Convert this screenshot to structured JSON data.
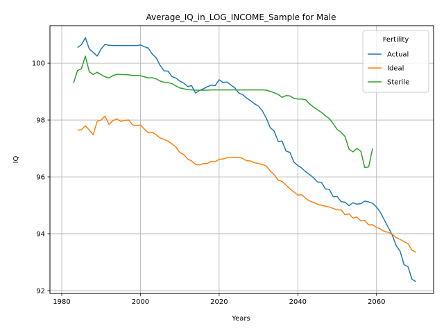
{
  "chart_data": {
    "type": "line",
    "title": "Average_IQ_in_LOG_INCOME_Sample for Male",
    "xlabel": "Years",
    "ylabel": "IQ",
    "xlim": [
      1977,
      2074.5
    ],
    "ylim": [
      91.9,
      101.32
    ],
    "xticks": [
      1980,
      2000,
      2020,
      2040,
      2060
    ],
    "yticks": [
      92,
      94,
      96,
      98,
      100
    ],
    "grid": true,
    "legend": {
      "title": "Fertility",
      "placement": "top-right"
    },
    "series": [
      {
        "name": "Actual",
        "color": "#1f77b4",
        "x": [
          1984,
          1985,
          1986,
          1987,
          1988,
          1989,
          1990,
          1991,
          1992,
          1993,
          1994,
          1995,
          1996,
          1997,
          1998,
          1999,
          2000,
          2001,
          2002,
          2003,
          2004,
          2005,
          2006,
          2007,
          2008,
          2009,
          2010,
          2011,
          2012,
          2013,
          2014,
          2015,
          2016,
          2017,
          2018,
          2019,
          2020,
          2021,
          2022,
          2023,
          2024,
          2025,
          2026,
          2027,
          2028,
          2029,
          2030,
          2031,
          2032,
          2033,
          2034,
          2035,
          2036,
          2037,
          2038,
          2039,
          2040,
          2041,
          2042,
          2043,
          2044,
          2045,
          2046,
          2047,
          2048,
          2049,
          2050,
          2051,
          2052,
          2053,
          2054,
          2055,
          2056,
          2057,
          2058,
          2059,
          2060,
          2061,
          2062,
          2063,
          2064,
          2065,
          2066,
          2067,
          2068,
          2069,
          2070
        ],
        "y": [
          100.55,
          100.65,
          100.9,
          100.5,
          100.38,
          100.25,
          100.5,
          100.66,
          100.63,
          100.62,
          100.62,
          100.62,
          100.62,
          100.62,
          100.62,
          100.62,
          100.64,
          100.58,
          100.53,
          100.32,
          100.19,
          99.92,
          99.73,
          99.72,
          99.53,
          99.48,
          99.37,
          99.3,
          99.18,
          99.21,
          98.95,
          99.04,
          99.1,
          99.17,
          99.23,
          99.21,
          99.42,
          99.32,
          99.34,
          99.23,
          99.13,
          98.95,
          98.89,
          98.77,
          98.68,
          98.57,
          98.49,
          98.32,
          98.06,
          97.73,
          97.61,
          97.25,
          97.26,
          96.91,
          96.86,
          96.52,
          96.4,
          96.31,
          96.18,
          96.08,
          95.97,
          95.82,
          95.81,
          95.58,
          95.56,
          95.3,
          95.31,
          95.13,
          95.11,
          94.99,
          95.09,
          95.04,
          95.06,
          95.15,
          95.12,
          95.07,
          94.94,
          94.75,
          94.48,
          94.22,
          93.95,
          93.58,
          93.38,
          92.91,
          92.84,
          92.4,
          92.32
        ]
      },
      {
        "name": "Ideal",
        "color": "#ff7f0e",
        "x": [
          1984,
          1985,
          1986,
          1987,
          1988,
          1989,
          1990,
          1991,
          1992,
          1993,
          1994,
          1995,
          1996,
          1997,
          1998,
          1999,
          2000,
          2001,
          2002,
          2003,
          2004,
          2005,
          2006,
          2007,
          2008,
          2009,
          2010,
          2011,
          2012,
          2013,
          2014,
          2015,
          2016,
          2017,
          2018,
          2019,
          2020,
          2021,
          2022,
          2023,
          2024,
          2025,
          2026,
          2027,
          2028,
          2029,
          2030,
          2031,
          2032,
          2033,
          2034,
          2035,
          2036,
          2037,
          2038,
          2039,
          2040,
          2041,
          2042,
          2043,
          2044,
          2045,
          2046,
          2047,
          2048,
          2049,
          2050,
          2051,
          2052,
          2053,
          2054,
          2055,
          2056,
          2057,
          2058,
          2059,
          2060,
          2061,
          2062,
          2063,
          2064,
          2065,
          2066,
          2067,
          2068,
          2069,
          2070
        ],
        "y": [
          97.64,
          97.66,
          97.8,
          97.65,
          97.48,
          97.96,
          98.0,
          98.14,
          97.84,
          97.98,
          98.04,
          97.95,
          97.99,
          98.0,
          97.83,
          97.8,
          97.83,
          97.68,
          97.55,
          97.57,
          97.48,
          97.37,
          97.32,
          97.26,
          97.16,
          97.06,
          96.85,
          96.79,
          96.63,
          96.56,
          96.44,
          96.42,
          96.47,
          96.47,
          96.55,
          96.53,
          96.62,
          96.63,
          96.67,
          96.69,
          96.69,
          96.69,
          96.65,
          96.57,
          96.56,
          96.5,
          96.47,
          96.44,
          96.38,
          96.21,
          96.07,
          95.89,
          95.84,
          95.71,
          95.58,
          95.47,
          95.36,
          95.37,
          95.25,
          95.15,
          95.1,
          95.04,
          95.0,
          94.97,
          94.94,
          94.89,
          94.84,
          94.84,
          94.67,
          94.7,
          94.55,
          94.59,
          94.45,
          94.47,
          94.31,
          94.32,
          94.22,
          94.17,
          94.08,
          94.05,
          93.98,
          93.87,
          93.8,
          93.72,
          93.65,
          93.42,
          93.35
        ]
      },
      {
        "name": "Sterile",
        "color": "#2ca02c",
        "x": [
          1983,
          1984,
          1985,
          1986,
          1987,
          1988,
          1989,
          1990,
          1991,
          1992,
          1993,
          1994,
          1995,
          1996,
          1997,
          1998,
          1999,
          2000,
          2001,
          2002,
          2003,
          2004,
          2005,
          2006,
          2007,
          2008,
          2009,
          2010,
          2011,
          2012,
          2013,
          2014,
          2015,
          2016,
          2017,
          2018,
          2019,
          2020,
          2021,
          2022,
          2023,
          2024,
          2025,
          2026,
          2027,
          2028,
          2029,
          2030,
          2031,
          2032,
          2033,
          2034,
          2035,
          2036,
          2037,
          2038,
          2039,
          2040,
          2041,
          2042,
          2043,
          2044,
          2045,
          2046,
          2047,
          2048,
          2049,
          2050,
          2051,
          2052,
          2053,
          2054,
          2055,
          2056,
          2057,
          2058,
          2059
        ],
        "y": [
          99.3,
          99.74,
          99.8,
          100.25,
          99.7,
          99.6,
          99.68,
          99.6,
          99.52,
          99.48,
          99.56,
          99.61,
          99.6,
          99.6,
          99.59,
          99.57,
          99.57,
          99.56,
          99.52,
          99.48,
          99.49,
          99.45,
          99.37,
          99.33,
          99.32,
          99.28,
          99.2,
          99.13,
          99.1,
          99.07,
          99.06,
          99.05,
          99.05,
          99.05,
          99.05,
          99.06,
          99.06,
          99.06,
          99.06,
          99.06,
          99.06,
          99.06,
          99.06,
          99.06,
          99.06,
          99.06,
          99.06,
          99.06,
          99.06,
          99.05,
          99.01,
          98.96,
          98.9,
          98.8,
          98.86,
          98.85,
          98.76,
          98.74,
          98.74,
          98.71,
          98.57,
          98.45,
          98.36,
          98.27,
          98.15,
          98.05,
          97.87,
          97.67,
          97.57,
          97.42,
          96.98,
          96.88,
          97.0,
          96.91,
          96.33,
          96.35,
          97.0
        ]
      }
    ]
  }
}
